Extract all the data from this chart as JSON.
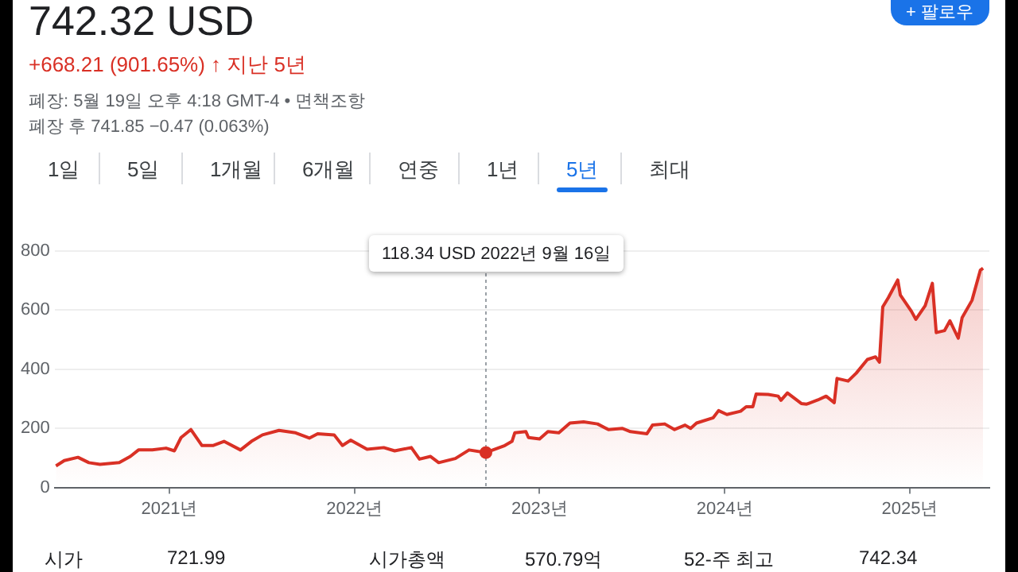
{
  "chart_data": {
    "type": "area",
    "title": "742.32 USD",
    "subtitle": "+668.21 (901.65%) ↑ 지난 5년",
    "annotations": [
      "폐장: 5월 19일 오후 4:18 GMT-4 • 면책조항",
      "폐장 후 741.85 −0.47 (0.063%)",
      "1일",
      "5일",
      "1개월",
      "6개월",
      "연중",
      "1년",
      "5년",
      "최대",
      "+ 팔로우",
      "시가",
      "721.99",
      "시가총액",
      "570.79억",
      "52-주 최고",
      "742.34",
      "118.34 USD  2022년 9월 16일"
    ],
    "ref_lines": [
      {
        "axis": "x",
        "value": 2022.71,
        "color": "#9aa0a6",
        "line_style": "dotted"
      }
    ],
    "x": [
      2020.387,
      2020.432,
      2020.506,
      2020.565,
      2020.625,
      2020.729,
      2020.789,
      2020.833,
      2020.908,
      2020.982,
      2021.027,
      2021.063,
      2021.116,
      2021.176,
      2021.235,
      2021.295,
      2021.384,
      2021.443,
      2021.503,
      2021.592,
      2021.682,
      2021.756,
      2021.801,
      2021.89,
      2021.935,
      2021.979,
      2022.068,
      2022.158,
      2022.217,
      2022.307,
      2022.351,
      2022.411,
      2022.455,
      2022.545,
      2022.619,
      2022.71,
      2022.812,
      2022.851,
      2022.866,
      2022.926,
      2022.94,
      2023.0,
      2023.045,
      2023.104,
      2023.164,
      2023.238,
      2023.313,
      2023.372,
      2023.446,
      2023.491,
      2023.58,
      2023.61,
      2023.676,
      2023.729,
      2023.786,
      2023.816,
      2023.848,
      2023.938,
      2023.967,
      2024.012,
      2024.086,
      2024.116,
      2024.152,
      2024.17,
      2024.235,
      2024.289,
      2024.304,
      2024.339,
      2024.414,
      2024.443,
      2024.503,
      2024.548,
      2024.592,
      2024.607,
      2024.667,
      2024.711,
      2024.771,
      2024.815,
      2024.836,
      2024.854,
      2024.884,
      2024.935,
      2024.949,
      2025.009,
      2025.033,
      2025.083,
      2025.122,
      2025.143,
      2025.188,
      2025.217,
      2025.262,
      2025.283,
      2025.336,
      2025.381,
      2025.396
    ],
    "series": [
      {
        "color": "#d93025",
        "values": [
          73,
          91,
          102,
          84,
          78,
          84,
          105,
          127,
          127,
          133,
          124,
          169,
          196,
          142,
          142,
          156,
          127,
          156,
          178,
          193,
          185,
          167,
          182,
          178,
          142,
          160,
          129,
          135,
          124,
          135,
          96,
          105,
          84,
          98,
          127,
          118,
          142,
          156,
          185,
          189,
          169,
          164,
          189,
          185,
          218,
          222,
          215,
          196,
          200,
          189,
          182,
          211,
          215,
          196,
          211,
          200,
          218,
          236,
          260,
          247,
          258,
          273,
          273,
          316,
          315,
          309,
          295,
          320,
          284,
          282,
          296,
          309,
          287,
          369,
          360,
          387,
          433,
          442,
          424,
          611,
          642,
          702,
          651,
          596,
          569,
          615,
          691,
          524,
          531,
          564,
          505,
          575,
          633,
          735,
          742
        ]
      }
    ],
    "xlim": [
      2020.38,
      2025.43
    ],
    "xticks": [
      {
        "value": 2021,
        "label": "2021년"
      },
      {
        "value": 2022,
        "label": "2022년"
      },
      {
        "value": 2023,
        "label": "2023년"
      },
      {
        "value": 2024,
        "label": "2024년"
      },
      {
        "value": 2025,
        "label": "2025년"
      }
    ],
    "ylim": [
      0,
      800
    ],
    "yticks": [
      0,
      200,
      400,
      600,
      800
    ],
    "grid": "y",
    "legend": false,
    "marker": "none",
    "line_style": "solid"
  }
}
